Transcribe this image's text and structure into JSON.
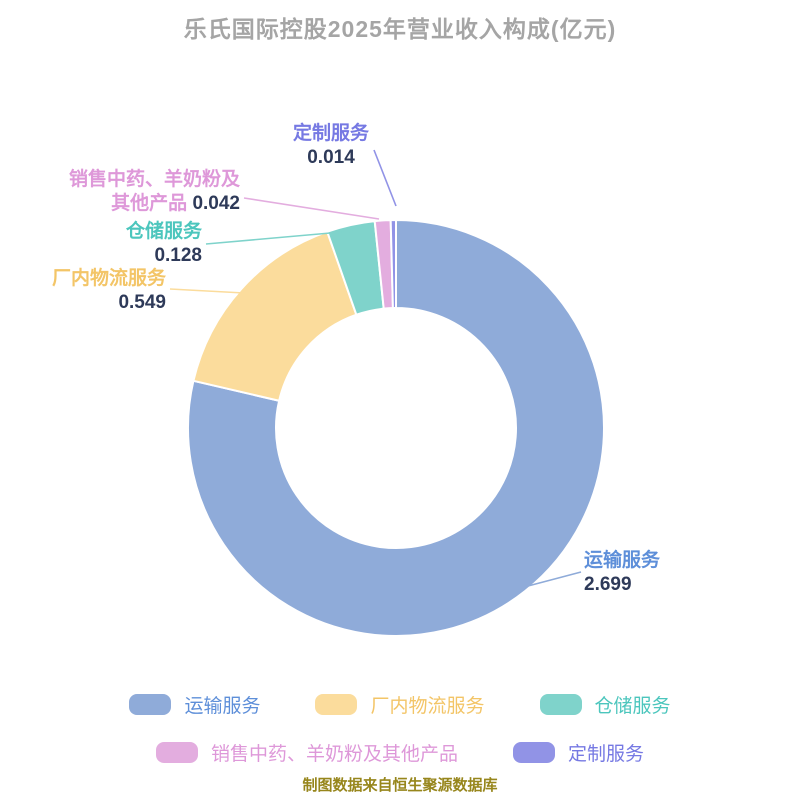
{
  "title": "乐氏国际控股2025年营业收入构成(亿元)",
  "footer": "制图数据来自恒生聚源数据库",
  "chart_data": {
    "type": "pie",
    "donut": true,
    "title": "乐氏国际控股2025年营业收入构成(亿元)",
    "unit": "亿元",
    "legend_position": "bottom",
    "value_color": "#2e3a59",
    "slices": [
      {
        "name": "运输服务",
        "value": 2.699,
        "color": "#8fabd9",
        "label_color": "#5e8fd9"
      },
      {
        "name": "厂内物流服务",
        "value": 0.549,
        "color": "#fbdc9c",
        "label_color": "#f3c567"
      },
      {
        "name": "仓储服务",
        "value": 0.128,
        "color": "#7fd3cb",
        "label_color": "#4cc6bd"
      },
      {
        "name": "销售中药、羊奶粉及其他产品",
        "value": 0.042,
        "color": "#e3addf",
        "label_color": "#de98d9"
      },
      {
        "name": "定制服务",
        "value": 0.014,
        "color": "#9193e6",
        "label_color": "#7679e3"
      }
    ]
  }
}
